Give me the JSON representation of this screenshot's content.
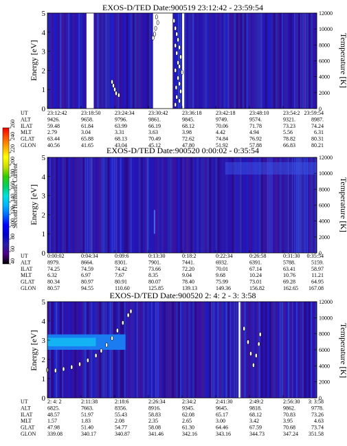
{
  "chart_data": {
    "type": "heatmap",
    "colorbar": {
      "label": "Second Harmonic Current",
      "range": [
        40,
        260
      ],
      "ticks": [
        "40",
        "60",
        "80",
        "100",
        "120",
        "140",
        "160",
        "180",
        "200",
        "220",
        "240",
        "260"
      ],
      "colors": [
        "#000000",
        "#4b0082",
        "#2a1fa8",
        "#0000cc",
        "#0000ff",
        "#0066ff",
        "#00b4ff",
        "#00e0e0",
        "#00d060",
        "#33cc00",
        "#ccdd00",
        "#ffff00",
        "#ffaa00",
        "#ff5500",
        "#ee0000"
      ]
    },
    "panels": [
      {
        "title": "EXOS-D/TED   Date:900519  23:12:42 - 23:59:54",
        "ylabel": "Energy [eV]",
        "y2label": "Temperature [K]",
        "ylim": [
          0,
          5
        ],
        "yticks": [
          "0",
          "1",
          "2",
          "3",
          "4",
          "5"
        ],
        "y2lim": [
          0,
          12000
        ],
        "y2ticks": [
          "0",
          "2000",
          "4000",
          "6000",
          "8000",
          "10000",
          "12000"
        ],
        "gaps": [
          [
            0.145,
            0.172
          ],
          [
            0.392,
            0.465
          ],
          [
            0.5,
            0.508
          ]
        ],
        "high_band": null,
        "temperature_points": [
          [
            0.405,
            4.8
          ],
          [
            0.41,
            4.5
          ],
          [
            0.402,
            4.2
          ],
          [
            0.398,
            3.9
          ],
          [
            0.392,
            3.7
          ],
          [
            0.47,
            4.6
          ],
          [
            0.475,
            4.2
          ],
          [
            0.48,
            3.9
          ],
          [
            0.485,
            3.6
          ],
          [
            0.475,
            3.3
          ],
          [
            0.49,
            3.2
          ],
          [
            0.48,
            2.9
          ],
          [
            0.495,
            2.7
          ],
          [
            0.485,
            2.4
          ],
          [
            0.49,
            2.2
          ],
          [
            0.475,
            2.0
          ],
          [
            0.5,
            1.9
          ],
          [
            0.485,
            1.6
          ],
          [
            0.49,
            1.3
          ],
          [
            0.478,
            1.1
          ],
          [
            0.495,
            0.9
          ],
          [
            0.48,
            0.6
          ],
          [
            0.49,
            0.4
          ],
          [
            0.475,
            0.2
          ],
          [
            0.24,
            1.4
          ],
          [
            0.245,
            1.2
          ],
          [
            0.25,
            1.0
          ],
          [
            0.255,
            0.8
          ],
          [
            0.265,
            0.7
          ]
        ],
        "info_labels": [
          "UT",
          "ALT",
          "ILAT",
          "MLT",
          "GLAT",
          "GLON"
        ],
        "info_rows": [
          [
            "23:12:42",
            "23:18:50",
            "23:24:34",
            "23:30:42",
            "23:36:18",
            "23:42:18",
            "23:48:10",
            "23:54:2",
            "23:59:54"
          ],
          [
            "9426.",
            "9658.",
            "9796.",
            "9861.",
            "9845.",
            "9749.",
            "9574.",
            "9321.",
            "8987."
          ],
          [
            "59.48",
            "61.84",
            "63.99",
            "66.19",
            "68.12",
            "70.06",
            "71.78",
            "73.23",
            "74.24"
          ],
          [
            "2.79",
            "3.04",
            "3.31",
            "3.63",
            "3.98",
            "4.42",
            "4.94",
            "5.56",
            "6.31"
          ],
          [
            "63.44",
            "65.88",
            "68.13",
            "70.49",
            "72.62",
            "74.84",
            "76.92",
            "78.82",
            "80.31"
          ],
          [
            "40.56",
            "41.65",
            "43.04",
            "45.12",
            "47.80",
            "51.92",
            "57.88",
            "66.83",
            "80.21"
          ]
        ]
      },
      {
        "title": "EXOS-D/TED   Date:900520  0:00:02 - 0:35:54",
        "ylabel": "Energy [eV]",
        "y2label": "Temperature [K]",
        "ylim": [
          0,
          5
        ],
        "yticks": [
          "0",
          "1",
          "2",
          "3",
          "4",
          "5"
        ],
        "y2lim": [
          0,
          12000
        ],
        "y2ticks": [
          "0",
          "2000",
          "4000",
          "6000",
          "8000",
          "10000",
          "12000"
        ],
        "gaps": [],
        "high_band": null,
        "temperature_points": [],
        "info_labels": [
          "UT",
          "ALT",
          "ILAT",
          "MLT",
          "GLAT",
          "GLON"
        ],
        "info_rows": [
          [
            "0:00:02",
            "0:04:34",
            "0:09:6",
            "0:13:30",
            "0:18:2",
            "0:22:34",
            "0:26:58",
            "0:31:30",
            "0:35:54"
          ],
          [
            "8979.",
            "8664.",
            "8301.",
            "7901.",
            "7441.",
            "6932.",
            "6391.",
            "5788.",
            "5159."
          ],
          [
            "74.25",
            "74.59",
            "74.42",
            "73.66",
            "72.20",
            "70.01",
            "67.14",
            "63.41",
            "58.97"
          ],
          [
            "6.32",
            "6.97",
            "7.67",
            "8.35",
            "9.04",
            "9.68",
            "10.24",
            "10.76",
            "11.21"
          ],
          [
            "80.34",
            "80.97",
            "80.91",
            "80.07",
            "78.40",
            "75.99",
            "73.01",
            "69.28",
            "64.95"
          ],
          [
            "80.57",
            "94.55",
            "110.60",
            "125.85",
            "139.13",
            "149.36",
            "156.82",
            "162.65",
            "167.08"
          ]
        ]
      },
      {
        "title": "EXOS-D/TED   Date:900520  2: 4: 2 - 3: 3:58",
        "ylabel": "Energy [eV]",
        "y2label": "Temperature [K]",
        "ylim": [
          0,
          5
        ],
        "yticks": [
          "0",
          "1",
          "2",
          "3",
          "4",
          "5"
        ],
        "y2lim": [
          0,
          12000
        ],
        "y2ticks": [
          "0",
          "2000",
          "4000",
          "6000",
          "8000",
          "10000",
          "12000"
        ],
        "gaps": [
          [
            0.71,
            0.716
          ]
        ],
        "high_band": {
          "x_range": [
            0,
            0.29
          ],
          "y_range": [
            2.5,
            3.3
          ]
        },
        "temperature_points": [
          [
            0.0,
            1.45
          ],
          [
            0.03,
            1.42
          ],
          [
            0.06,
            1.5
          ],
          [
            0.09,
            1.6
          ],
          [
            0.12,
            1.75
          ],
          [
            0.15,
            1.95
          ],
          [
            0.18,
            2.2
          ],
          [
            0.2,
            2.45
          ],
          [
            0.22,
            2.75
          ],
          [
            0.24,
            3.1
          ],
          [
            0.26,
            3.5
          ],
          [
            0.28,
            3.9
          ],
          [
            0.3,
            4.3
          ],
          [
            0.31,
            4.5
          ],
          [
            0.73,
            3.6
          ],
          [
            0.745,
            2.9
          ],
          [
            0.755,
            2.3
          ],
          [
            0.765,
            1.7
          ],
          [
            0.775,
            2.2
          ],
          [
            0.785,
            2.8
          ],
          [
            0.79,
            3.3
          ]
        ],
        "info_labels": [
          "UT",
          "ALT",
          "ILAT",
          "MLT",
          "GLAT",
          "GLON"
        ],
        "info_rows": [
          [
            "2: 4: 2",
            "2:11:38",
            "2:18:6",
            "2:26:34",
            "2:34:2",
            "2:41:30",
            "2:49:2",
            "2:56:30",
            "3: 3:58"
          ],
          [
            "6825.",
            "7663.",
            "8356.",
            "8916.",
            "9345.",
            "9645.",
            "9818.",
            "9862.",
            "9778."
          ],
          [
            "48.57",
            "51.97",
            "55.43",
            "58.83",
            "62.08",
            "65.17",
            "68.12",
            "70.83",
            "73.26"
          ],
          [
            "1.57",
            "1.83",
            "2.08",
            "2.35",
            "2.65",
            "3.00",
            "3.42",
            "3.95",
            "4.63"
          ],
          [
            "47.98",
            "51.40",
            "54.77",
            "58.08",
            "61.30",
            "64.46",
            "67.59",
            "70.68",
            "73.74"
          ],
          [
            "339.08",
            "340.17",
            "340.87",
            "341.46",
            "342.16",
            "343.16",
            "344.73",
            "347.24",
            "351.58"
          ]
        ]
      }
    ]
  }
}
